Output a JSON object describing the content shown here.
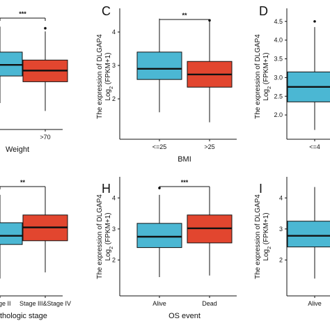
{
  "colors": {
    "blue": "#4bb7d3",
    "red": "#e2462f",
    "line": "#111111"
  },
  "chart_data": [
    {
      "panel": "",
      "type": "box",
      "xlabel": "Weight",
      "ylabel": "",
      "categories": [
        "",
        ">70"
      ],
      "sig": "***",
      "ylim": [
        1.0,
        4.5
      ],
      "boxes": [
        {
          "q1": 2.55,
          "median": 2.9,
          "q3": 3.3,
          "whisker_low": 1.7,
          "whisker_high": 4.1,
          "outliers": [],
          "color": "#4bb7d3"
        },
        {
          "q1": 2.37,
          "median": 2.72,
          "q3": 3.05,
          "whisker_low": 1.45,
          "whisker_high": 3.95,
          "outliers": [
            4.05
          ],
          "color": "#e2462f"
        }
      ]
    },
    {
      "panel": "C",
      "type": "box",
      "xlabel": "BMI",
      "ylabel": "The expression of DLGAP4",
      "ylabel2": "Log2 (FPKM+1)",
      "categories": [
        "<=25",
        ">25"
      ],
      "sig": "**",
      "ylim": [
        1.0,
        4.5
      ],
      "yticks": [
        2,
        3,
        4
      ],
      "boxes": [
        {
          "q1": 2.58,
          "median": 2.9,
          "q3": 3.4,
          "whisker_low": 1.6,
          "whisker_high": 4.4,
          "outliers": [],
          "color": "#4bb7d3"
        },
        {
          "q1": 2.35,
          "median": 2.73,
          "q3": 3.12,
          "whisker_low": 1.3,
          "whisker_high": 4.3,
          "outliers": [
            4.35
          ],
          "color": "#e2462f"
        }
      ]
    },
    {
      "panel": "D",
      "type": "box",
      "xlabel": "",
      "ylabel": "The expression of DLGAP4",
      "ylabel2": "Log2 (FPKM+1)",
      "categories": [
        "<=4"
      ],
      "sig": "",
      "ylim": [
        1.5,
        4.7
      ],
      "yticks": [
        2.0,
        2.5,
        3.0,
        3.5,
        4.0,
        4.5
      ],
      "boxes": [
        {
          "q1": 2.35,
          "median": 2.75,
          "q3": 3.15,
          "whisker_low": 1.6,
          "whisker_high": 4.35,
          "outliers": [
            4.5
          ],
          "color": "#4bb7d3"
        }
      ]
    },
    {
      "panel": "",
      "type": "box",
      "xlabel": "thologic stage",
      "ylabel": "",
      "categories": [
        "Stage II",
        "Stage III&Stage IV"
      ],
      "sig": "**",
      "ylim": [
        1.0,
        4.5
      ],
      "boxes": [
        {
          "q1": 2.5,
          "median": 2.78,
          "q3": 3.2,
          "whisker_low": 1.4,
          "whisker_high": 4.1,
          "outliers": [],
          "color": "#4bb7d3"
        },
        {
          "q1": 2.62,
          "median": 3.05,
          "q3": 3.45,
          "whisker_low": 1.6,
          "whisker_high": 4.3,
          "outliers": [],
          "color": "#e2462f"
        }
      ]
    },
    {
      "panel": "H",
      "type": "box",
      "xlabel": "OS event",
      "ylabel": "The expression of DLGAP4",
      "ylabel2": "Log2 (FPKM+1)",
      "categories": [
        "Alive",
        "Dead"
      ],
      "sig": "***",
      "ylim": [
        1.0,
        4.5
      ],
      "yticks": [
        2,
        3,
        4
      ],
      "boxes": [
        {
          "q1": 2.4,
          "median": 2.75,
          "q3": 3.18,
          "whisker_low": 1.45,
          "whisker_high": 4.1,
          "outliers": [
            4.32
          ],
          "color": "#4bb7d3"
        },
        {
          "q1": 2.55,
          "median": 3.02,
          "q3": 3.45,
          "whisker_low": 1.5,
          "whisker_high": 4.35,
          "outliers": [],
          "color": "#e2462f"
        }
      ]
    },
    {
      "panel": "I",
      "type": "box",
      "xlabel": "",
      "ylabel": "The expression of DLGAP4",
      "ylabel2": "Log2 (FPKM+1)",
      "categories": [
        "Alive"
      ],
      "sig": "",
      "ylim": [
        1.0,
        4.5
      ],
      "yticks": [
        2,
        3,
        4
      ],
      "boxes": [
        {
          "q1": 2.42,
          "median": 2.78,
          "q3": 3.25,
          "whisker_low": 1.4,
          "whisker_high": 4.35,
          "outliers": [],
          "color": "#4bb7d3"
        }
      ]
    }
  ]
}
